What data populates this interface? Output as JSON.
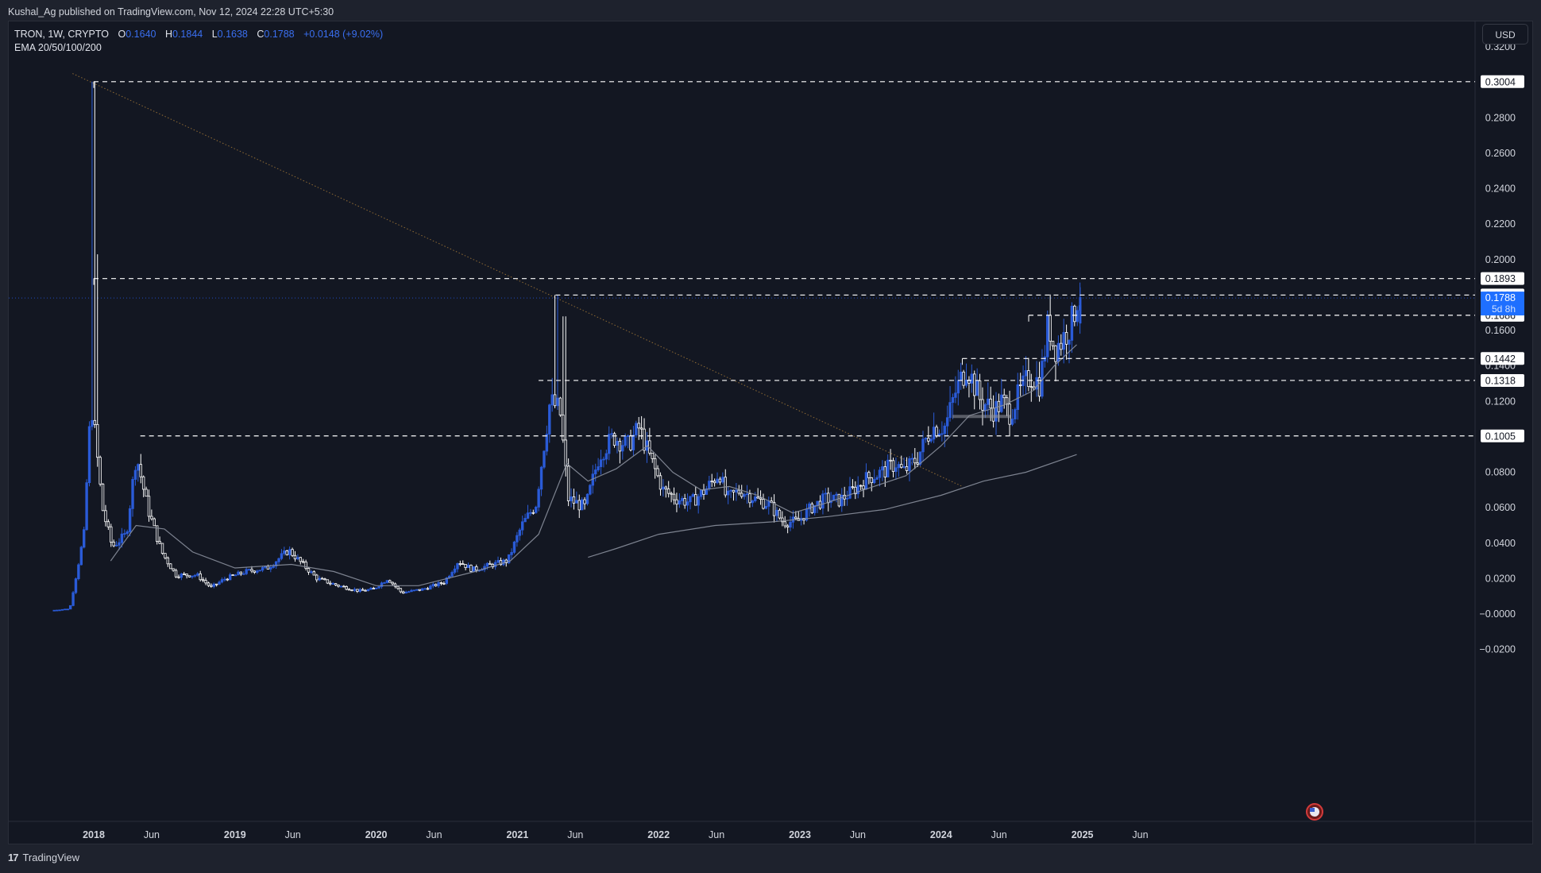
{
  "publisher_line": "Kushal_Ag published on TradingView.com, Nov 12, 2024 22:28 UTC+5:30",
  "legend": {
    "symbol": "TRON, 1W, CRYPTO",
    "o_label": "O",
    "o": "0.1640",
    "h_label": "H",
    "h": "0.1844",
    "l_label": "L",
    "l": "0.1638",
    "c_label": "C",
    "c": "0.1788",
    "change": "+0.0148 (+9.02%)",
    "indicator": "EMA 20/50/100/200"
  },
  "currency_button": "USD",
  "footer": {
    "logo_glyph": "17",
    "brand": "TradingView"
  },
  "colors": {
    "background": "#131722",
    "up_candle": "#2a5bd7",
    "down_candle": "#ffffff",
    "ema_line": "#8a8f9c",
    "trendline": "#b8863b",
    "level_line": "#ffffff",
    "last_price_badge": "#1e6fff"
  },
  "chart_data": {
    "type": "candlestick",
    "title": "TRON, 1W, CRYPTO",
    "indicator": "EMA 20/50/100/200",
    "x_ticks": [
      "2018",
      "Jun",
      "2019",
      "Jun",
      "2020",
      "Jun",
      "2021",
      "Jun",
      "2022",
      "Jun",
      "2023",
      "Jun",
      "2024",
      "Jun",
      "2025",
      "Jun"
    ],
    "y_ticks": [
      "0.3200",
      "0.2800",
      "0.2600",
      "0.2400",
      "0.2200",
      "0.2000",
      "0.1600",
      "0.1400",
      "0.1200",
      "0.0800",
      "0.0600",
      "0.0400",
      "0.0200",
      "−0.0000",
      "−0.0200"
    ],
    "ylim": [
      -0.025,
      0.33
    ],
    "horizontal_levels": [
      {
        "value": "0.3004",
        "x_start": 2018.0
      },
      {
        "value": "0.1893",
        "x_start": 2018.0
      },
      {
        "value": "0.1800",
        "x_start": 2021.27
      },
      {
        "value": "0.1686",
        "x_start": 2024.62
      },
      {
        "value": "0.1442",
        "x_start": 2024.15
      },
      {
        "value": "0.1318",
        "x_start": 2021.15
      },
      {
        "value": "0.1005",
        "x_start": 2018.33
      }
    ],
    "last_price": {
      "value": "0.1788",
      "countdown": "5d 8h"
    },
    "trendline": {
      "from": {
        "x": 2017.85,
        "y": 0.305
      },
      "to": {
        "x": 2024.15,
        "y": 0.072
      },
      "style": "dotted"
    },
    "price_path": [
      [
        2017.72,
        0.002
      ],
      [
        2017.85,
        0.003
      ],
      [
        2017.95,
        0.045
      ],
      [
        2018.0,
        0.12
      ],
      [
        2018.03,
        0.1
      ],
      [
        2018.08,
        0.06
      ],
      [
        2018.15,
        0.038
      ],
      [
        2018.25,
        0.045
      ],
      [
        2018.32,
        0.09
      ],
      [
        2018.4,
        0.06
      ],
      [
        2018.5,
        0.035
      ],
      [
        2018.6,
        0.022
      ],
      [
        2018.75,
        0.022
      ],
      [
        2018.85,
        0.015
      ],
      [
        2018.95,
        0.02
      ],
      [
        2019.1,
        0.024
      ],
      [
        2019.25,
        0.026
      ],
      [
        2019.4,
        0.036
      ],
      [
        2019.5,
        0.028
      ],
      [
        2019.6,
        0.02
      ],
      [
        2019.75,
        0.016
      ],
      [
        2019.9,
        0.013
      ],
      [
        2020.0,
        0.014
      ],
      [
        2020.1,
        0.02
      ],
      [
        2020.2,
        0.012
      ],
      [
        2020.35,
        0.014
      ],
      [
        2020.5,
        0.018
      ],
      [
        2020.6,
        0.03
      ],
      [
        2020.7,
        0.025
      ],
      [
        2020.85,
        0.028
      ],
      [
        2020.95,
        0.03
      ],
      [
        2021.05,
        0.05
      ],
      [
        2021.15,
        0.062
      ],
      [
        2021.25,
        0.12
      ],
      [
        2021.32,
        0.115
      ],
      [
        2021.38,
        0.065
      ],
      [
        2021.5,
        0.06
      ],
      [
        2021.6,
        0.09
      ],
      [
        2021.7,
        0.1
      ],
      [
        2021.8,
        0.095
      ],
      [
        2021.88,
        0.105
      ],
      [
        2021.95,
        0.09
      ],
      [
        2022.05,
        0.07
      ],
      [
        2022.15,
        0.065
      ],
      [
        2022.25,
        0.063
      ],
      [
        2022.35,
        0.07
      ],
      [
        2022.45,
        0.08
      ],
      [
        2022.5,
        0.065
      ],
      [
        2022.6,
        0.07
      ],
      [
        2022.7,
        0.065
      ],
      [
        2022.8,
        0.062
      ],
      [
        2022.9,
        0.052
      ],
      [
        2023.0,
        0.052
      ],
      [
        2023.1,
        0.06
      ],
      [
        2023.2,
        0.065
      ],
      [
        2023.3,
        0.064
      ],
      [
        2023.4,
        0.07
      ],
      [
        2023.5,
        0.077
      ],
      [
        2023.6,
        0.08
      ],
      [
        2023.7,
        0.085
      ],
      [
        2023.75,
        0.08
      ],
      [
        2023.85,
        0.088
      ],
      [
        2023.95,
        0.105
      ],
      [
        2024.05,
        0.106
      ],
      [
        2024.12,
        0.125
      ],
      [
        2024.2,
        0.14
      ],
      [
        2024.3,
        0.12
      ],
      [
        2024.4,
        0.115
      ],
      [
        2024.45,
        0.12
      ],
      [
        2024.5,
        0.113
      ],
      [
        2024.58,
        0.125
      ],
      [
        2024.65,
        0.135
      ],
      [
        2024.72,
        0.13
      ],
      [
        2024.78,
        0.165
      ],
      [
        2024.82,
        0.15
      ],
      [
        2024.88,
        0.155
      ],
      [
        2024.92,
        0.162
      ],
      [
        2024.95,
        0.165
      ],
      [
        2024.98,
        0.1788
      ]
    ],
    "ema_short_path": [
      [
        2018.12,
        0.03
      ],
      [
        2018.3,
        0.05
      ],
      [
        2018.5,
        0.048
      ],
      [
        2018.7,
        0.035
      ],
      [
        2019.0,
        0.026
      ],
      [
        2019.4,
        0.028
      ],
      [
        2019.7,
        0.024
      ],
      [
        2020.0,
        0.016
      ],
      [
        2020.3,
        0.016
      ],
      [
        2020.7,
        0.024
      ],
      [
        2020.95,
        0.03
      ],
      [
        2021.15,
        0.045
      ],
      [
        2021.35,
        0.085
      ],
      [
        2021.5,
        0.075
      ],
      [
        2021.7,
        0.082
      ],
      [
        2021.92,
        0.095
      ],
      [
        2022.1,
        0.08
      ],
      [
        2022.3,
        0.07
      ],
      [
        2022.5,
        0.072
      ],
      [
        2022.7,
        0.067
      ],
      [
        2022.95,
        0.057
      ],
      [
        2023.2,
        0.063
      ],
      [
        2023.45,
        0.07
      ],
      [
        2023.75,
        0.078
      ],
      [
        2024.0,
        0.095
      ],
      [
        2024.2,
        0.112
      ],
      [
        2024.45,
        0.118
      ],
      [
        2024.65,
        0.126
      ],
      [
        2024.8,
        0.14
      ],
      [
        2024.96,
        0.152
      ]
    ],
    "ema_long_path": [
      [
        2021.5,
        0.032
      ],
      [
        2021.7,
        0.037
      ],
      [
        2022.0,
        0.045
      ],
      [
        2022.4,
        0.05
      ],
      [
        2022.8,
        0.052
      ],
      [
        2023.2,
        0.055
      ],
      [
        2023.6,
        0.059
      ],
      [
        2024.0,
        0.067
      ],
      [
        2024.3,
        0.075
      ],
      [
        2024.6,
        0.08
      ],
      [
        2024.96,
        0.09
      ]
    ]
  }
}
